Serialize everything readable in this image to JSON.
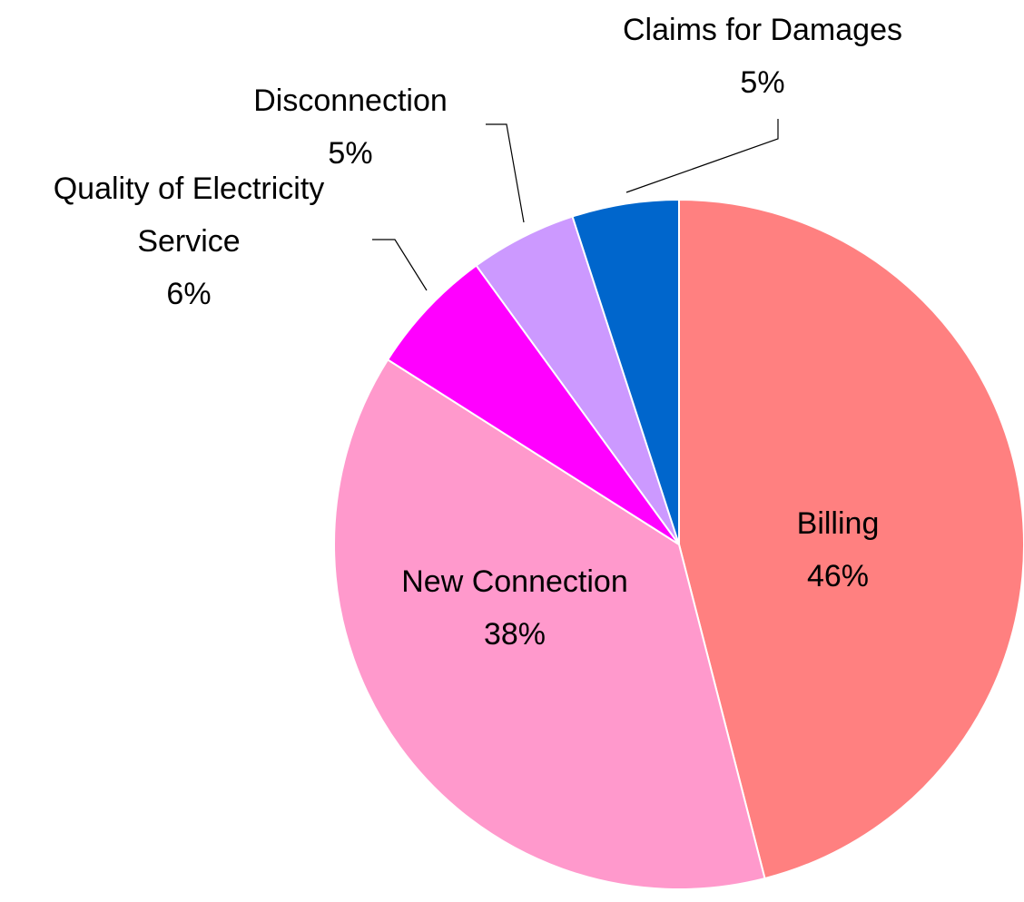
{
  "chart_data": {
    "type": "pie",
    "categories": [
      "Billing",
      "New Connection",
      "Quality of Electricity Service",
      "Disconnection",
      "Claims for Damages"
    ],
    "values": [
      46,
      38,
      6,
      5,
      5
    ],
    "value_labels": [
      "46%",
      "38%",
      "6%",
      "5%",
      "5%"
    ],
    "colors": [
      "#ff8080",
      "#ff99cc",
      "#ff00ff",
      "#cc99ff",
      "#0066cc"
    ]
  }
}
